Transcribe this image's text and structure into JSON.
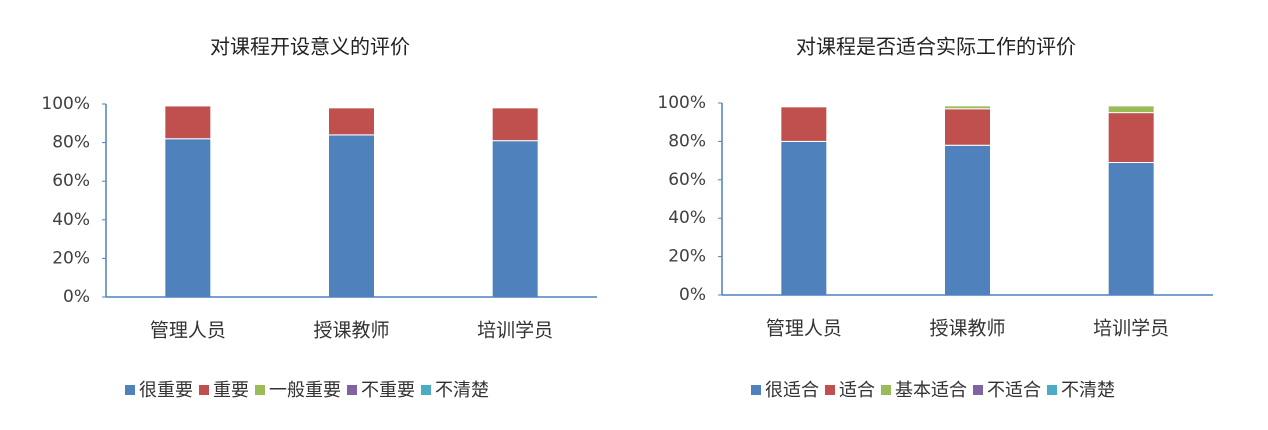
{
  "chart_data": [
    {
      "type": "bar",
      "stacked": true,
      "title": "对课程开设意义的评价",
      "categories": [
        "管理人员",
        "授课教师",
        "培训学员"
      ],
      "series": [
        {
          "name": "很重要",
          "color": "#4f81bd",
          "values": [
            82,
            84,
            81
          ]
        },
        {
          "name": "重要",
          "color": "#c0504d",
          "values": [
            17,
            14,
            17
          ]
        },
        {
          "name": "一般重要",
          "color": "#9bbb59",
          "values": [
            0,
            0,
            0
          ]
        },
        {
          "name": "不重要",
          "color": "#8064a2",
          "values": [
            0,
            0,
            0
          ]
        },
        {
          "name": "不清楚",
          "color": "#4bacc6",
          "values": [
            0,
            0,
            0
          ]
        }
      ],
      "ylim": [
        0,
        100
      ],
      "yticks": [
        {
          "value": 0,
          "label": "0%"
        },
        {
          "value": 20,
          "label": "20%"
        },
        {
          "value": 40,
          "label": "40%"
        },
        {
          "value": 60,
          "label": "60%"
        },
        {
          "value": 80,
          "label": "80%"
        },
        {
          "value": 100,
          "label": "100%"
        }
      ],
      "legend": "bottom"
    },
    {
      "type": "bar",
      "stacked": true,
      "title": "对课程是否适合实际工作的评价",
      "categories": [
        "管理人员",
        "授课教师",
        "培训学员"
      ],
      "series": [
        {
          "name": "很适合",
          "color": "#4f81bd",
          "values": [
            80,
            78,
            69
          ]
        },
        {
          "name": "适合",
          "color": "#c0504d",
          "values": [
            18,
            19,
            26
          ]
        },
        {
          "name": "基本适合",
          "color": "#9bbb59",
          "values": [
            0,
            1.5,
            3.5
          ]
        },
        {
          "name": "不适合",
          "color": "#8064a2",
          "values": [
            0,
            0,
            0
          ]
        },
        {
          "name": "不清楚",
          "color": "#4bacc6",
          "values": [
            0,
            0,
            0
          ]
        }
      ],
      "ylim": [
        0,
        100
      ],
      "yticks": [
        {
          "value": 0,
          "label": "0%"
        },
        {
          "value": 20,
          "label": "20%"
        },
        {
          "value": 40,
          "label": "40%"
        },
        {
          "value": 60,
          "label": "60%"
        },
        {
          "value": 80,
          "label": "80%"
        },
        {
          "value": 100,
          "label": "100%"
        }
      ],
      "legend": "bottom"
    }
  ]
}
